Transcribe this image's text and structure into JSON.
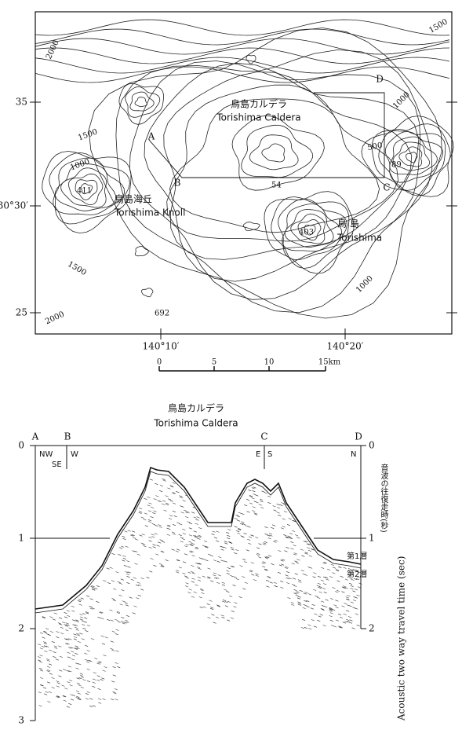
{
  "map": {
    "contour_labels": [
      "2000",
      "1500",
      "1500",
      "1000",
      "1500",
      "2000",
      "500",
      "1000",
      "1000"
    ],
    "lat_labels": [
      "35",
      "30°30′",
      "25"
    ],
    "lon_labels": [
      "140°10′",
      "140°20′"
    ],
    "depth_points": [
      "411",
      "54",
      "403",
      "89",
      "692"
    ],
    "features": [
      {
        "ja": "鳥島カルデラ",
        "en": "Torishima Caldera"
      },
      {
        "ja": "鳥島海丘",
        "en": "Torishima Knoll"
      },
      {
        "ja": "鳥 島",
        "en": "Torishima"
      }
    ],
    "section_points": [
      "A",
      "B",
      "C",
      "D"
    ],
    "scale": [
      "0",
      "5",
      "10",
      "15km"
    ]
  },
  "profile": {
    "title": {
      "ja": "鳥島カルデラ",
      "en": "Torishima Caldera"
    },
    "points": [
      "A",
      "B",
      "C",
      "D"
    ],
    "directions": [
      "NW",
      "SE",
      "W",
      "E",
      "S",
      "N"
    ],
    "left_ticks": [
      "0",
      "1",
      "2",
      "3"
    ],
    "right_ticks": [
      "0",
      "1",
      "2"
    ],
    "layers": [
      "第1層",
      "第2層"
    ],
    "axis_label": {
      "ja": "音波の往復走時(秒)",
      "en": "Acoustic two way travel time (sec)"
    }
  }
}
